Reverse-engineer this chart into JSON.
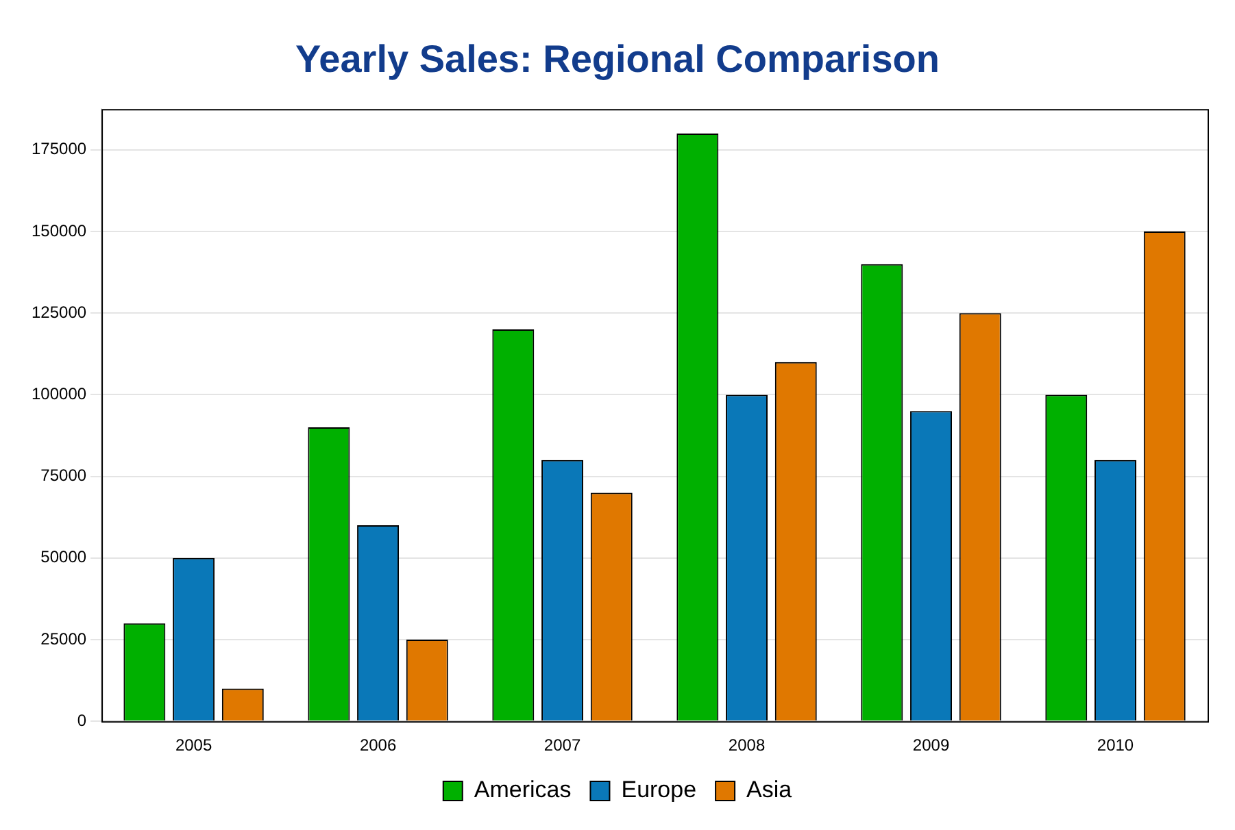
{
  "chart_data": {
    "type": "bar",
    "title": "Yearly Sales: Regional Comparison",
    "categories": [
      "2005",
      "2006",
      "2007",
      "2008",
      "2009",
      "2010"
    ],
    "series": [
      {
        "name": "Americas",
        "color": "#00b000",
        "values": [
          30000,
          90000,
          120000,
          180000,
          140000,
          100000
        ]
      },
      {
        "name": "Europe",
        "color": "#0a78b8",
        "values": [
          50000,
          60000,
          80000,
          100000,
          95000,
          80000
        ]
      },
      {
        "name": "Asia",
        "color": "#e07800",
        "values": [
          10000,
          25000,
          70000,
          110000,
          125000,
          150000
        ]
      }
    ],
    "ylim": [
      0,
      187500
    ],
    "yticks": [
      0,
      25000,
      50000,
      75000,
      100000,
      125000,
      150000,
      175000
    ],
    "grid": "y",
    "legend": "bottom"
  }
}
